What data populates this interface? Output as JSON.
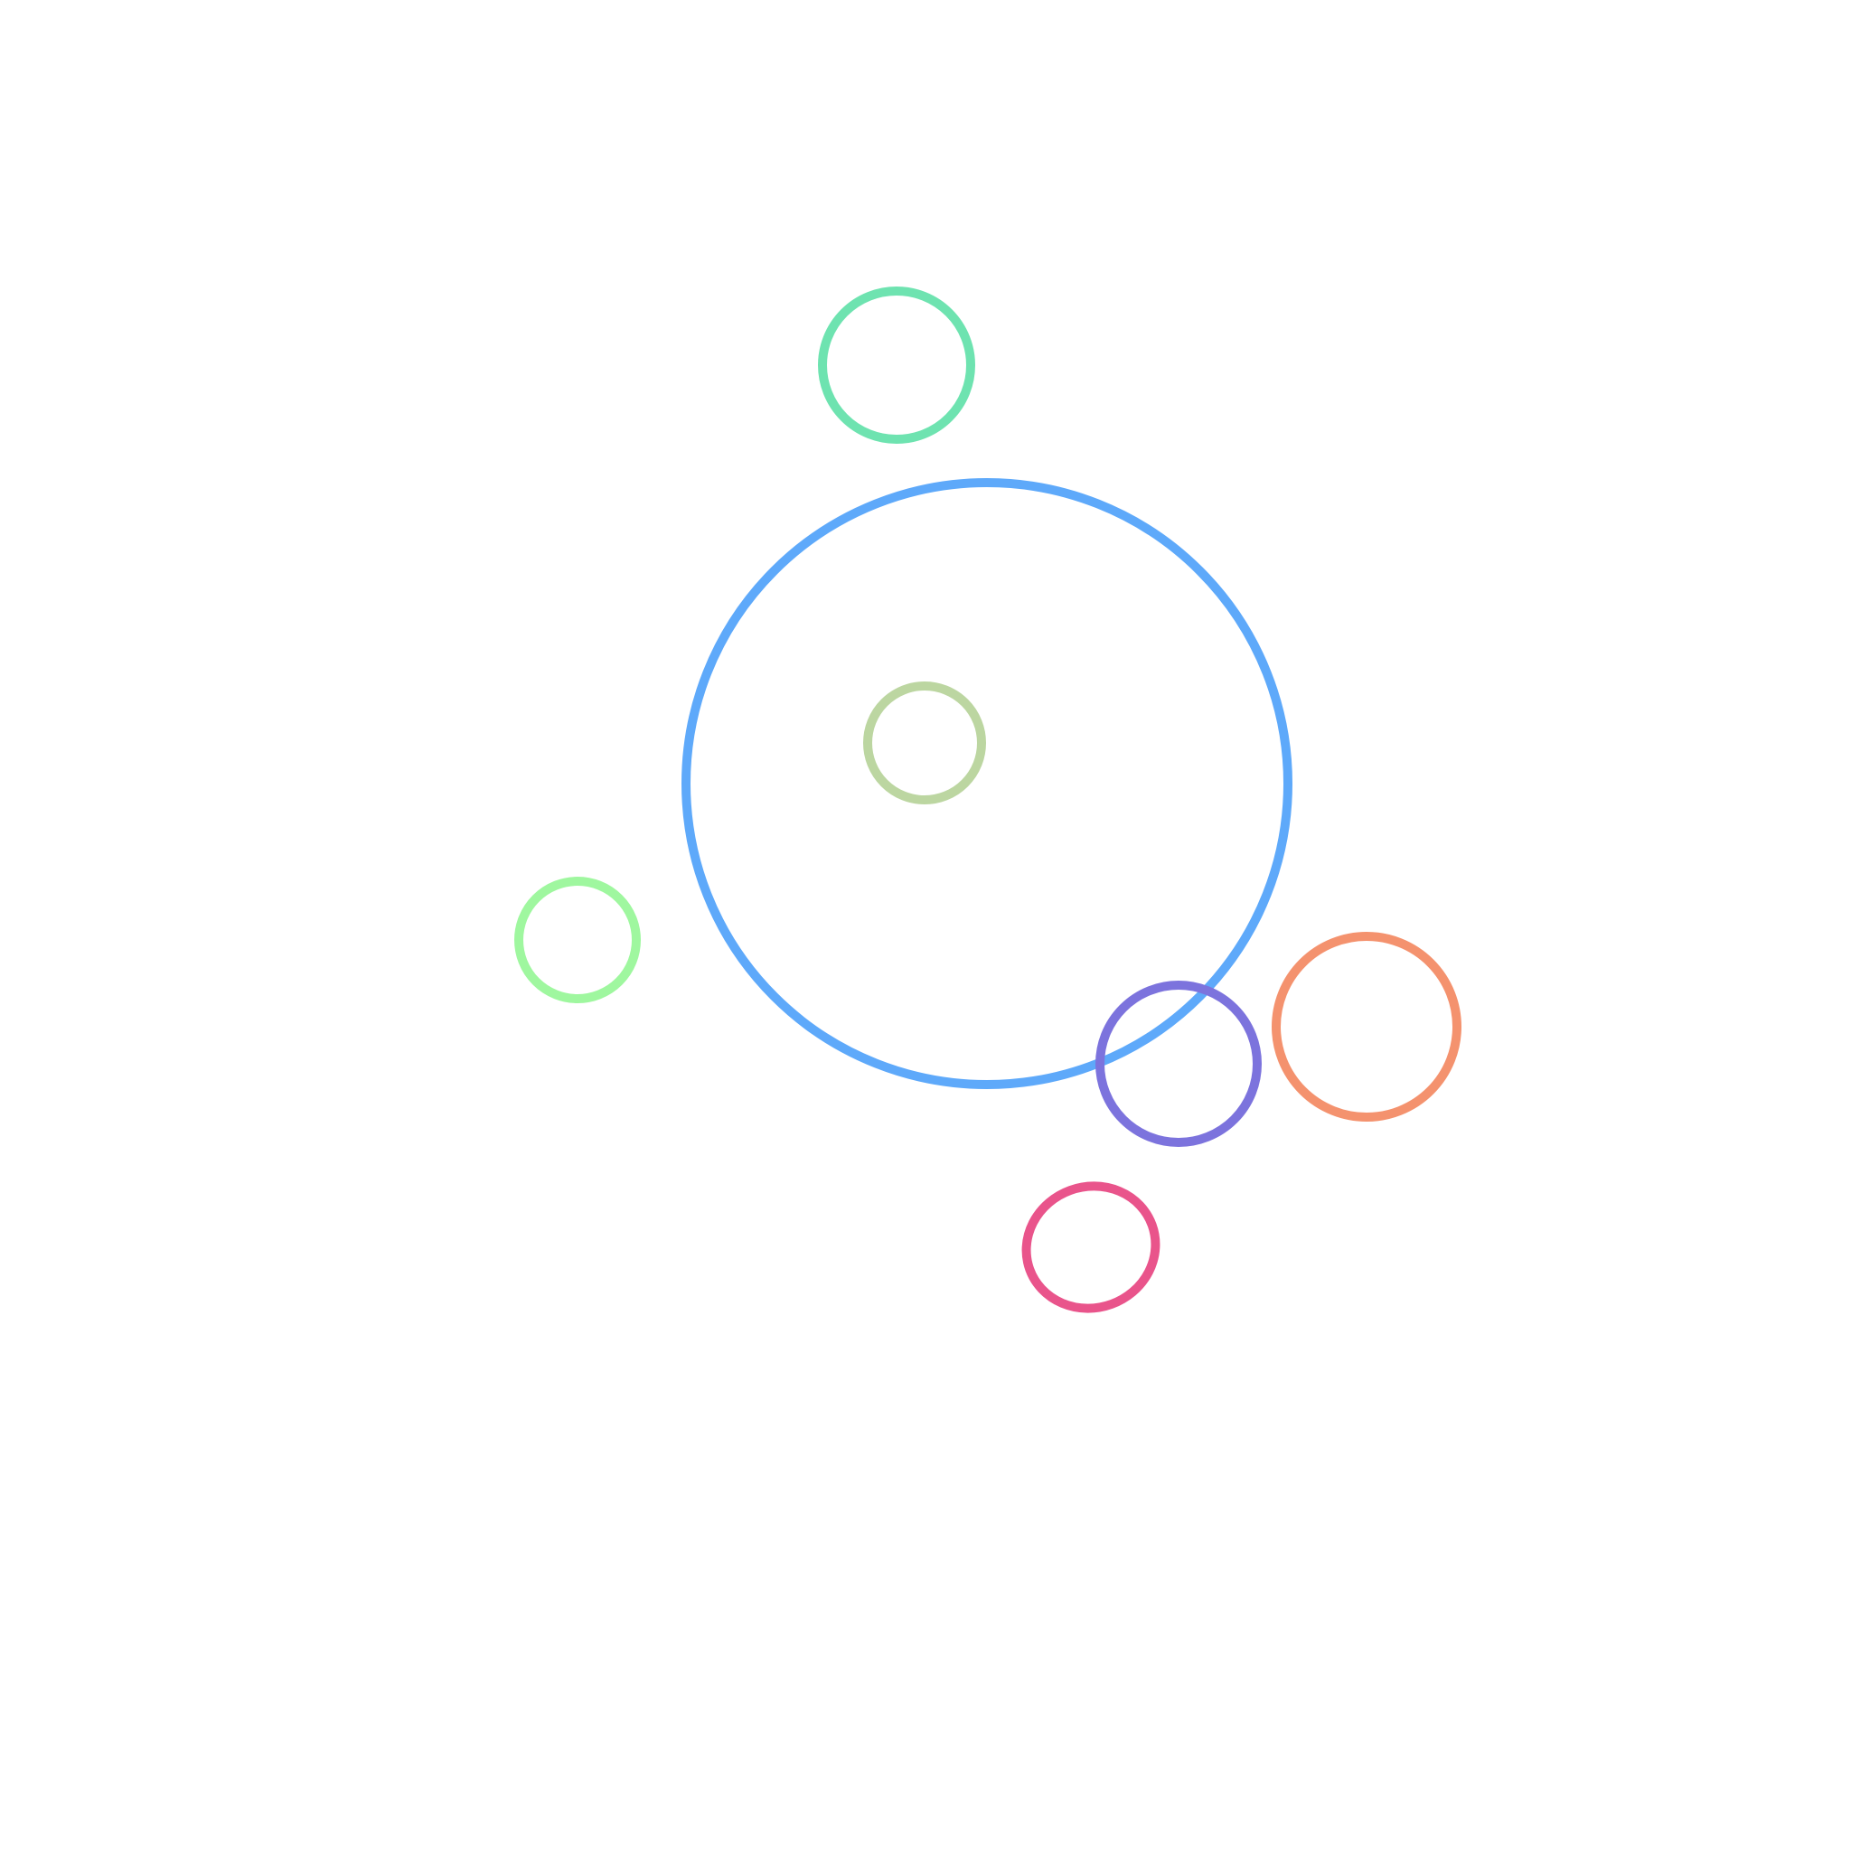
{
  "shapes": [
    {
      "name": "large-blue-circle",
      "color": "#5ea9fa"
    },
    {
      "name": "teal-circle",
      "color": "#6ee3b0"
    },
    {
      "name": "sage-circle",
      "color": "#bcd6a1"
    },
    {
      "name": "light-green-circle",
      "color": "#9ff79f"
    },
    {
      "name": "purple-circle",
      "color": "#7c73dd"
    },
    {
      "name": "orange-circle",
      "color": "#f4926e"
    },
    {
      "name": "pink-ellipse",
      "color": "#e9548b"
    }
  ]
}
